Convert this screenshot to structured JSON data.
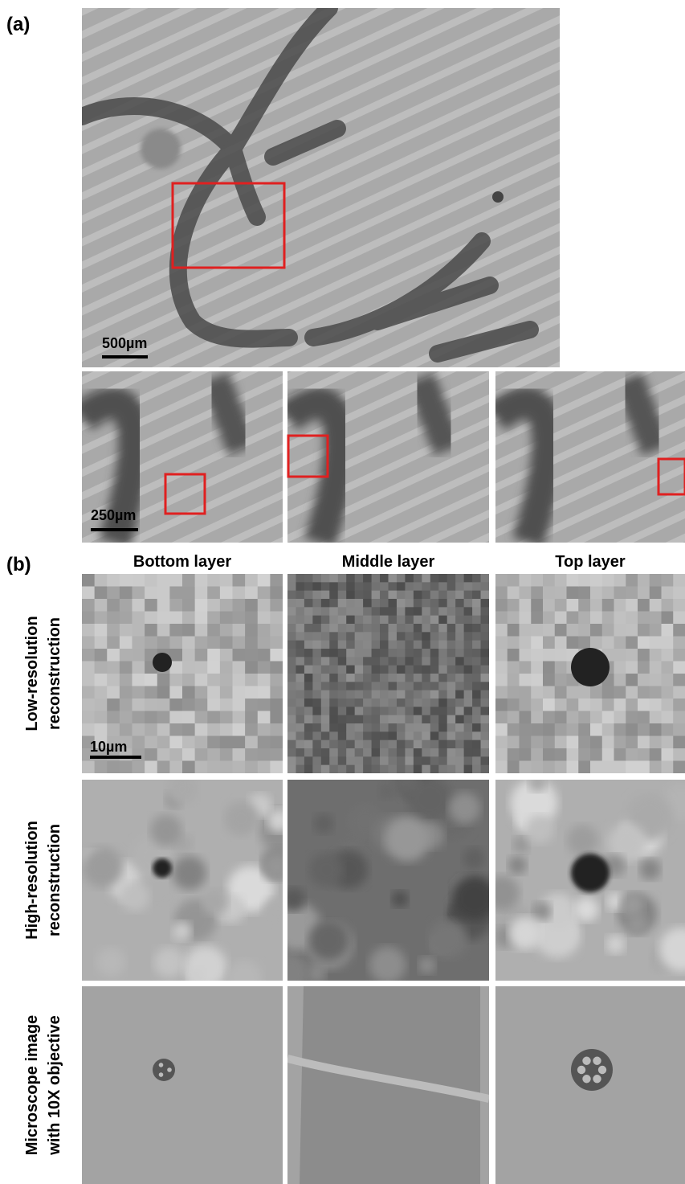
{
  "panel_a": {
    "label": "(a)",
    "main_scale_bar": "500µm",
    "sub_scale_bar": "250µm"
  },
  "panel_b": {
    "label": "(b)",
    "columns": [
      "Bottom layer",
      "Middle layer",
      "Top layer"
    ],
    "rows": [
      [
        "Low-resolution",
        "reconstruction"
      ],
      [
        "High-resolution",
        "reconstruction"
      ],
      [
        "Microscope image",
        "with 10X objective"
      ]
    ],
    "scale_bar": "10µm"
  }
}
